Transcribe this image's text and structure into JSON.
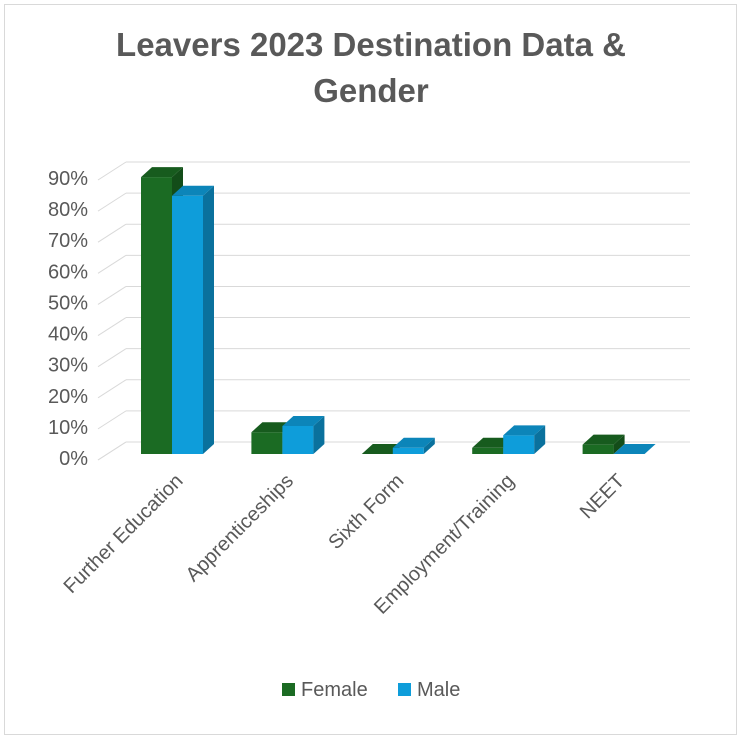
{
  "chart_data": {
    "type": "bar",
    "title_lines": [
      "Leavers 2023 Destination Data &",
      "Gender"
    ],
    "categories": [
      "Further Education",
      "Apprenticeships",
      "Sixth Form",
      "Employment/Training",
      "NEET"
    ],
    "series": [
      {
        "name": "Female",
        "values": [
          0.89,
          0.07,
          0.0,
          0.02,
          0.03
        ],
        "color": "#1b6b23"
      },
      {
        "name": "Male",
        "values": [
          0.83,
          0.09,
          0.02,
          0.06,
          0.0
        ],
        "color": "#0e9dda"
      }
    ],
    "y_ticks": [
      "0%",
      "10%",
      "20%",
      "30%",
      "40%",
      "50%",
      "60%",
      "70%",
      "80%",
      "90%"
    ],
    "ylim": [
      0,
      0.9
    ],
    "grid": true,
    "legend_position": "bottom",
    "style": "3d-clustered-column"
  }
}
